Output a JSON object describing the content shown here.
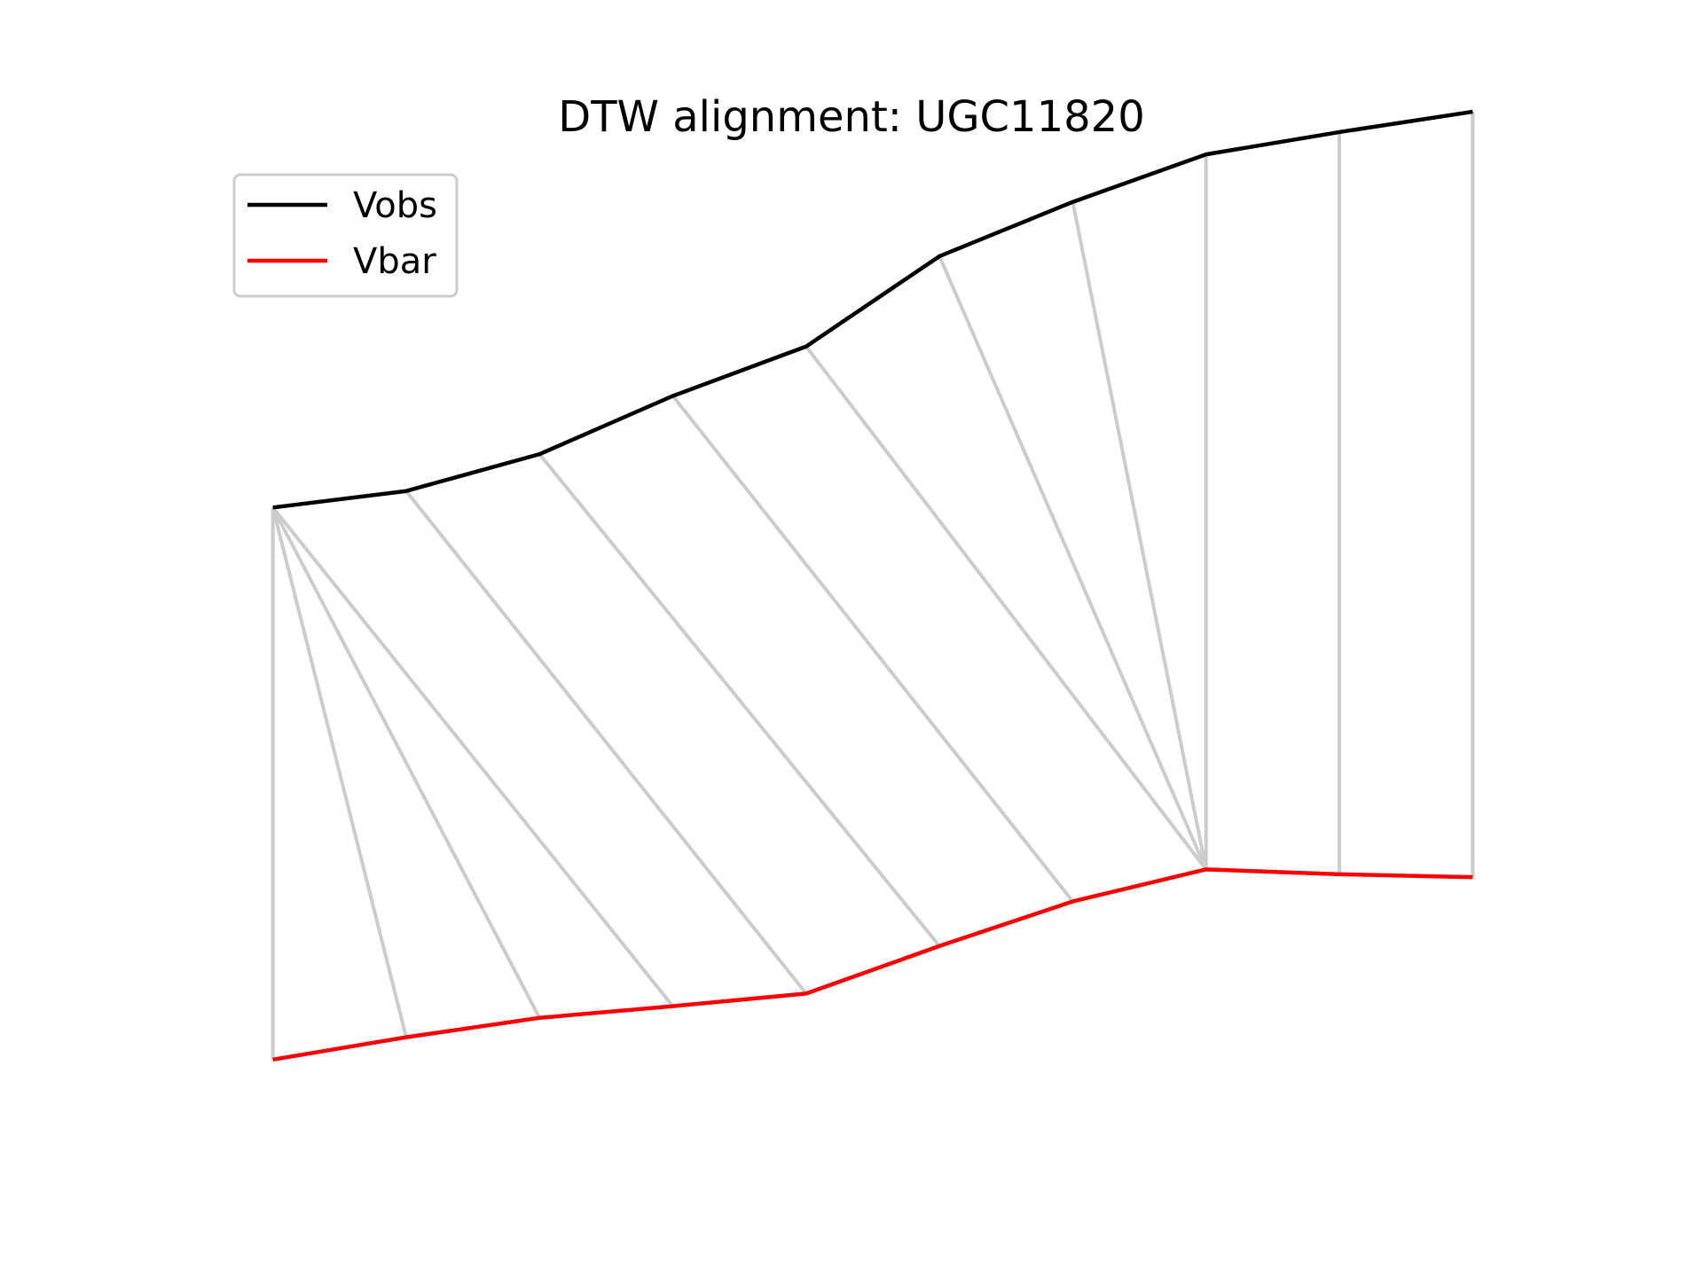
{
  "chart_data": {
    "type": "line",
    "title": "DTW alignment: UGC11820",
    "xlabel": "",
    "ylabel": "",
    "axes_visible": false,
    "grid": false,
    "legend_position": "upper-left",
    "x": [
      0,
      1,
      2,
      3,
      4,
      5,
      6,
      7,
      8,
      9
    ],
    "xlim": [
      -0.45,
      9.45
    ],
    "ylim": [
      0,
      1
    ],
    "series": [
      {
        "name": "Vobs",
        "color": "#000000",
        "values": [
          0.635,
          0.652,
          0.69,
          0.75,
          0.801,
          0.894,
          0.95,
          0.999,
          1.022,
          1.043
        ]
      },
      {
        "name": "Vbar",
        "color": "#ff0000",
        "values": [
          0.066,
          0.089,
          0.109,
          0.121,
          0.134,
          0.183,
          0.229,
          0.262,
          0.257,
          0.254
        ]
      }
    ],
    "alignment": {
      "color": "#cccccc",
      "pairs": [
        [
          0,
          0
        ],
        [
          0,
          1
        ],
        [
          0,
          2
        ],
        [
          0,
          3
        ],
        [
          1,
          4
        ],
        [
          2,
          5
        ],
        [
          3,
          6
        ],
        [
          4,
          7
        ],
        [
          5,
          7
        ],
        [
          6,
          7
        ],
        [
          7,
          7
        ],
        [
          8,
          8
        ],
        [
          9,
          9
        ]
      ]
    }
  }
}
